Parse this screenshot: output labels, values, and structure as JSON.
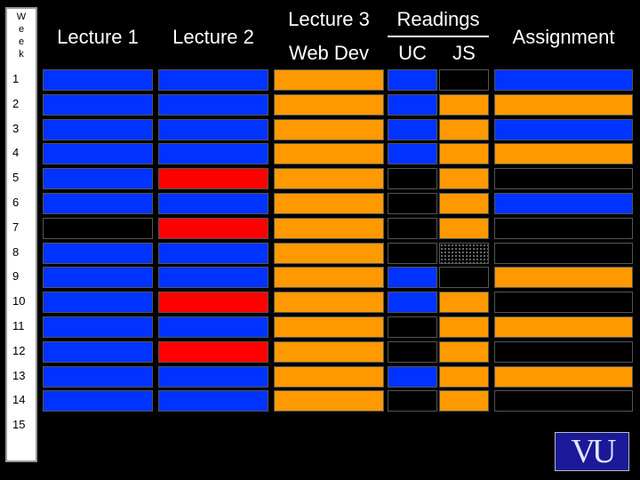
{
  "header": {
    "week_label_letters": [
      "W",
      "e",
      "e",
      "k"
    ],
    "lecture1": "Lecture 1",
    "lecture2": "Lecture 2",
    "lecture3": "Lecture 3",
    "lecture3_sub": "Web Dev",
    "readings": "Readings",
    "readings_uc": "UC",
    "readings_js": "JS",
    "assignment": "Assignment"
  },
  "weeks": [
    "1",
    "2",
    "3",
    "4",
    "5",
    "6",
    "7",
    "8",
    "9",
    "10",
    "11",
    "12",
    "13",
    "14",
    "15"
  ],
  "grid": {
    "lecture1": [
      "blue",
      "blue",
      "blue",
      "blue",
      "blue",
      "blue",
      "black",
      "blue",
      "blue",
      "blue",
      "blue",
      "blue",
      "blue",
      "blue",
      "blank"
    ],
    "lecture2": [
      "blue",
      "blue",
      "blue",
      "blue",
      "red",
      "blue",
      "red",
      "blue",
      "blue",
      "red",
      "blue",
      "red",
      "blue",
      "blue",
      "blank"
    ],
    "lecture3": [
      "orange",
      "orange",
      "orange",
      "orange",
      "orange",
      "orange",
      "orange",
      "orange",
      "orange",
      "orange",
      "orange",
      "orange",
      "orange",
      "orange",
      "blank"
    ],
    "uc": [
      "blue",
      "blue",
      "blue",
      "blue",
      "black",
      "black",
      "black",
      "black",
      "blue",
      "blue",
      "black",
      "black",
      "blue",
      "black",
      "blank"
    ],
    "js": [
      "black",
      "orange",
      "orange",
      "orange",
      "orange",
      "orange",
      "orange",
      "dotted",
      "black",
      "orange",
      "orange",
      "orange",
      "orange",
      "orange",
      "blank"
    ],
    "assignment": [
      "blue",
      "orange",
      "blue",
      "orange",
      "black",
      "blue",
      "black",
      "black",
      "orange",
      "black",
      "orange",
      "black",
      "orange",
      "black",
      "blank"
    ]
  },
  "colors": {
    "blue": "#0033ff",
    "orange": "#ff9900",
    "red": "#ff0000",
    "black": "#000000"
  },
  "logo": {
    "text": "VU"
  }
}
